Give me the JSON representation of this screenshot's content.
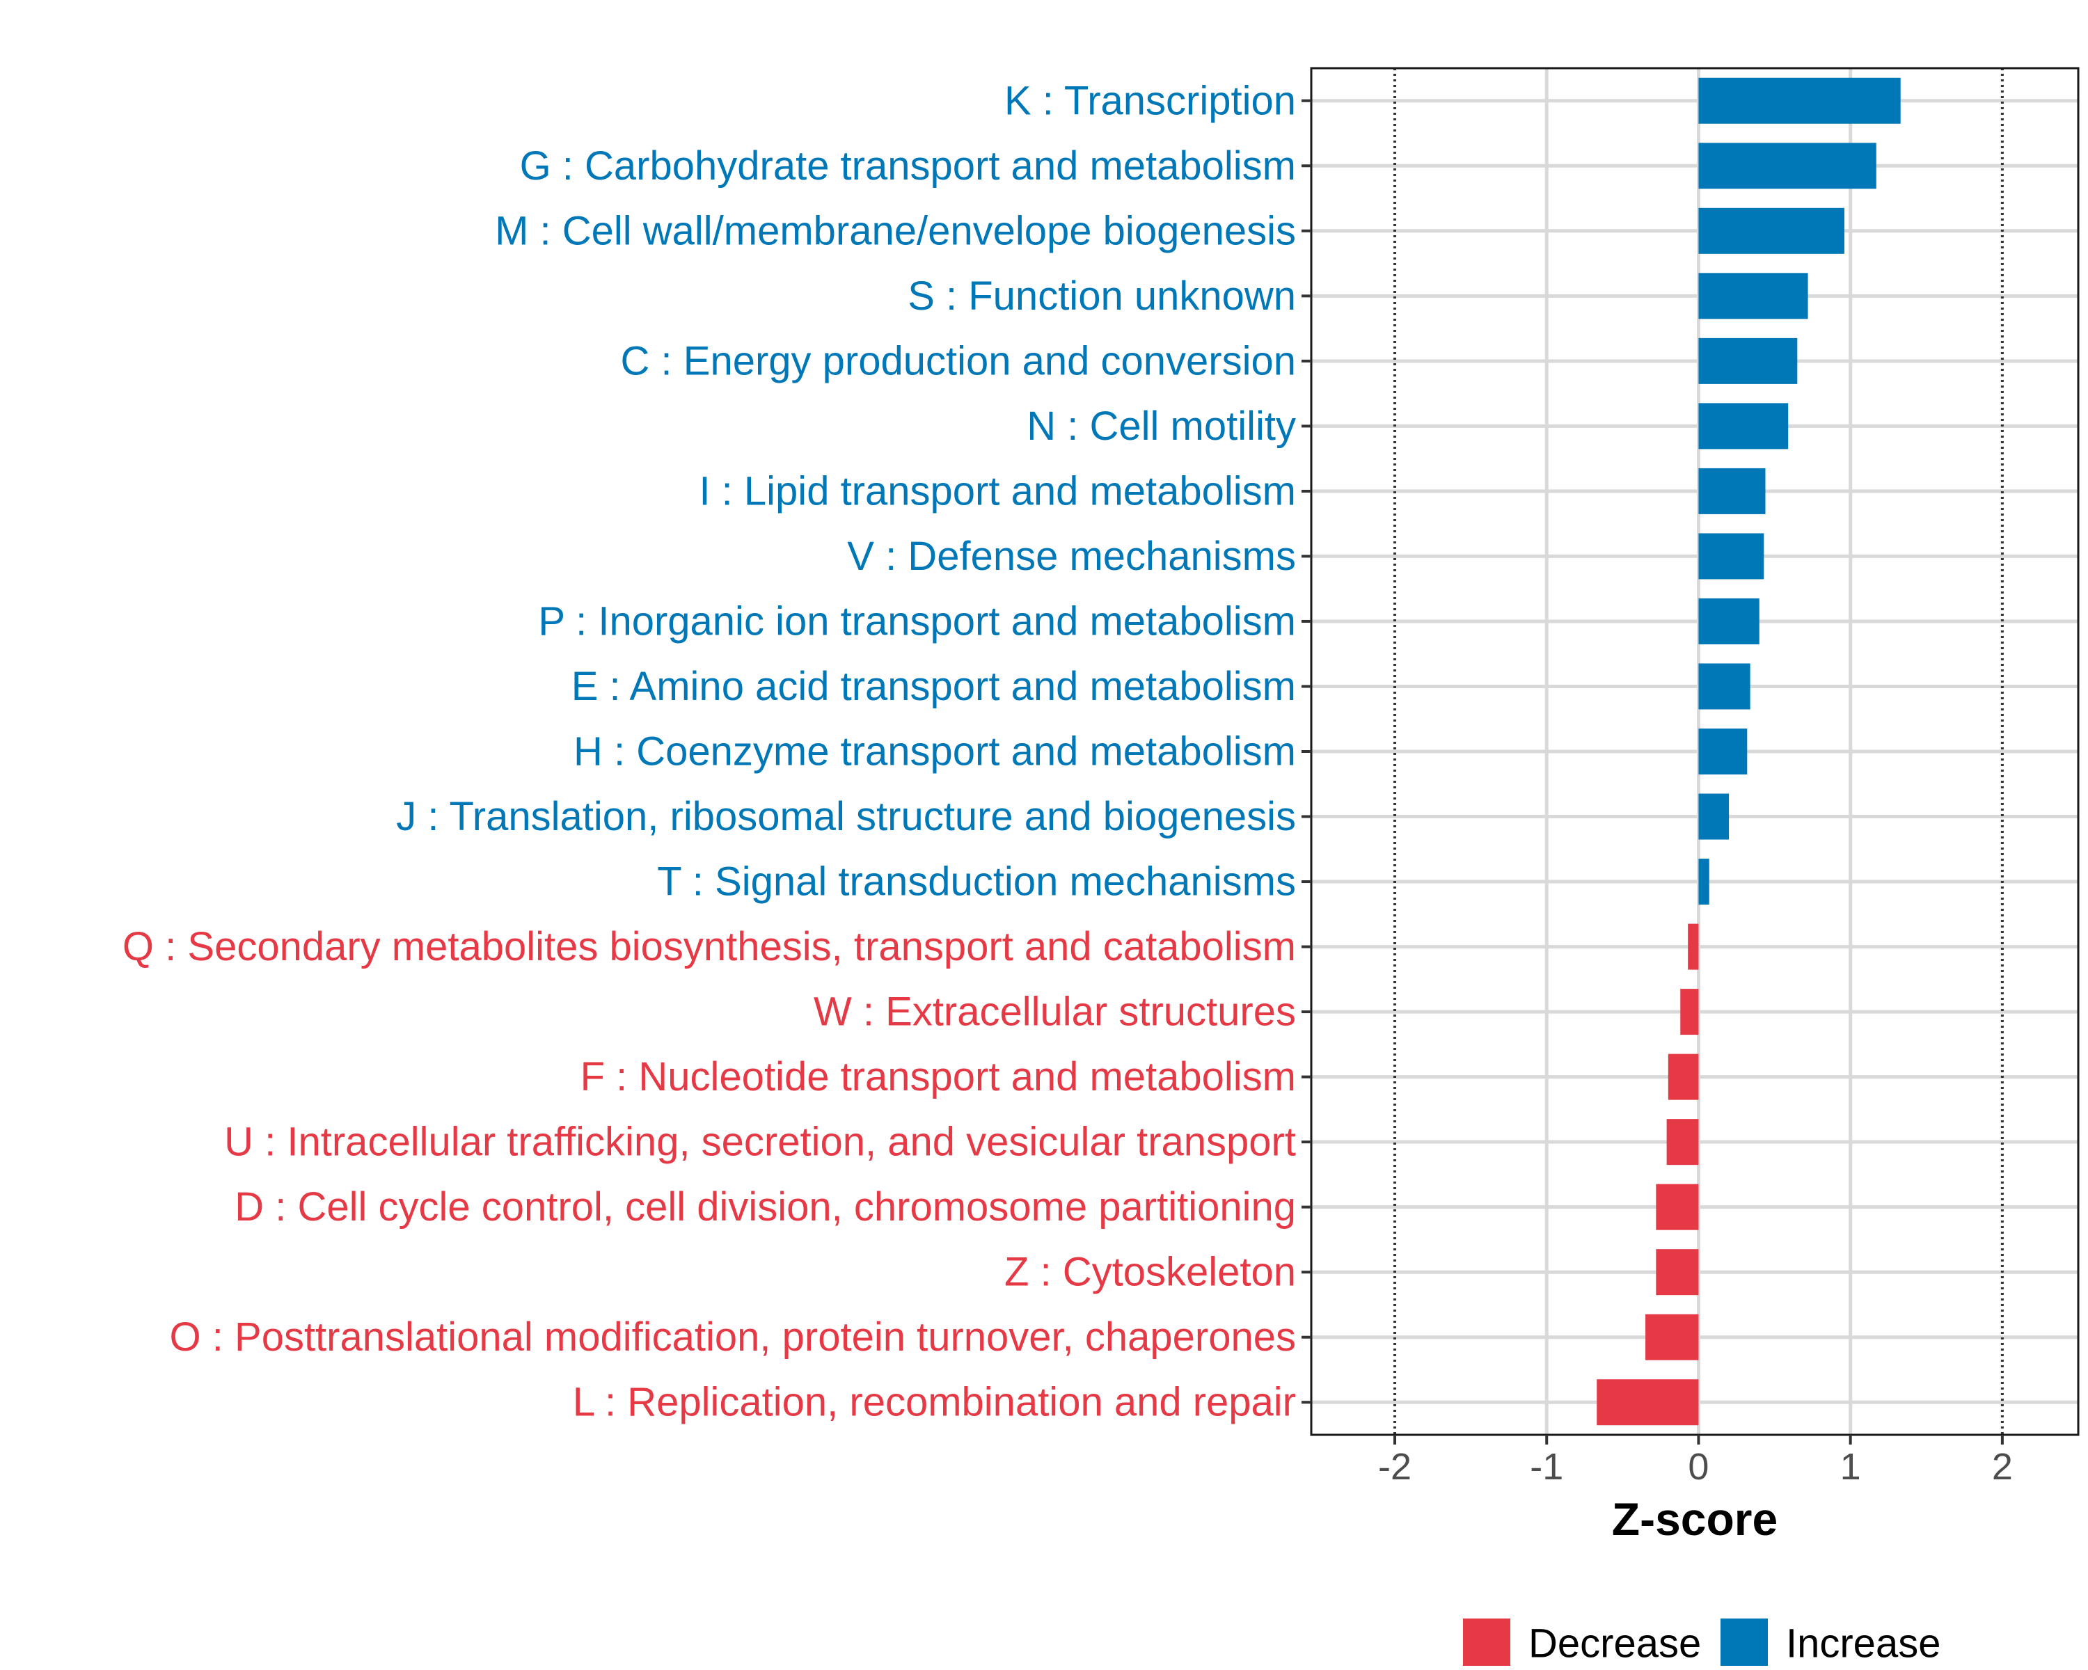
{
  "chart_data": {
    "type": "bar",
    "orientation": "horizontal",
    "xlabel": "Z-score",
    "xlim": [
      -2.55,
      2.5
    ],
    "xticks": [
      -2,
      -1,
      0,
      1,
      2
    ],
    "reference_lines": [
      -2,
      2
    ],
    "categories": [
      "K : Transcription",
      "G : Carbohydrate transport and metabolism",
      "M : Cell wall/membrane/envelope biogenesis",
      "S : Function unknown",
      "C : Energy production and conversion",
      "N : Cell motility",
      "I : Lipid transport and metabolism",
      "V : Defense mechanisms",
      "P : Inorganic ion transport and metabolism",
      "E : Amino acid transport and metabolism",
      "H : Coenzyme transport and metabolism",
      "J : Translation, ribosomal structure and biogenesis",
      "T : Signal transduction mechanisms",
      "Q : Secondary metabolites biosynthesis, transport and catabolism",
      "W : Extracellular structures",
      "F : Nucleotide transport and metabolism",
      "U : Intracellular trafficking, secretion, and vesicular transport",
      "D : Cell cycle control, cell division, chromosome partitioning",
      "Z : Cytoskeleton",
      "O : Posttranslational modification, protein turnover, chaperones",
      "L : Replication, recombination and repair"
    ],
    "values": [
      1.33,
      1.17,
      0.96,
      0.72,
      0.65,
      0.59,
      0.44,
      0.43,
      0.4,
      0.34,
      0.32,
      0.2,
      0.07,
      -0.07,
      -0.12,
      -0.2,
      -0.21,
      -0.28,
      -0.28,
      -0.35,
      -0.67
    ],
    "directions": [
      "Increase",
      "Increase",
      "Increase",
      "Increase",
      "Increase",
      "Increase",
      "Increase",
      "Increase",
      "Increase",
      "Increase",
      "Increase",
      "Increase",
      "Increase",
      "Decrease",
      "Decrease",
      "Decrease",
      "Decrease",
      "Decrease",
      "Decrease",
      "Decrease",
      "Decrease"
    ],
    "legend": {
      "position": "bottom",
      "entries": [
        {
          "label": "Decrease",
          "color": "#e63946"
        },
        {
          "label": "Increase",
          "color": "#0077b6"
        }
      ]
    },
    "colors": {
      "Increase": "#0077b6",
      "Decrease": "#e63946"
    }
  }
}
